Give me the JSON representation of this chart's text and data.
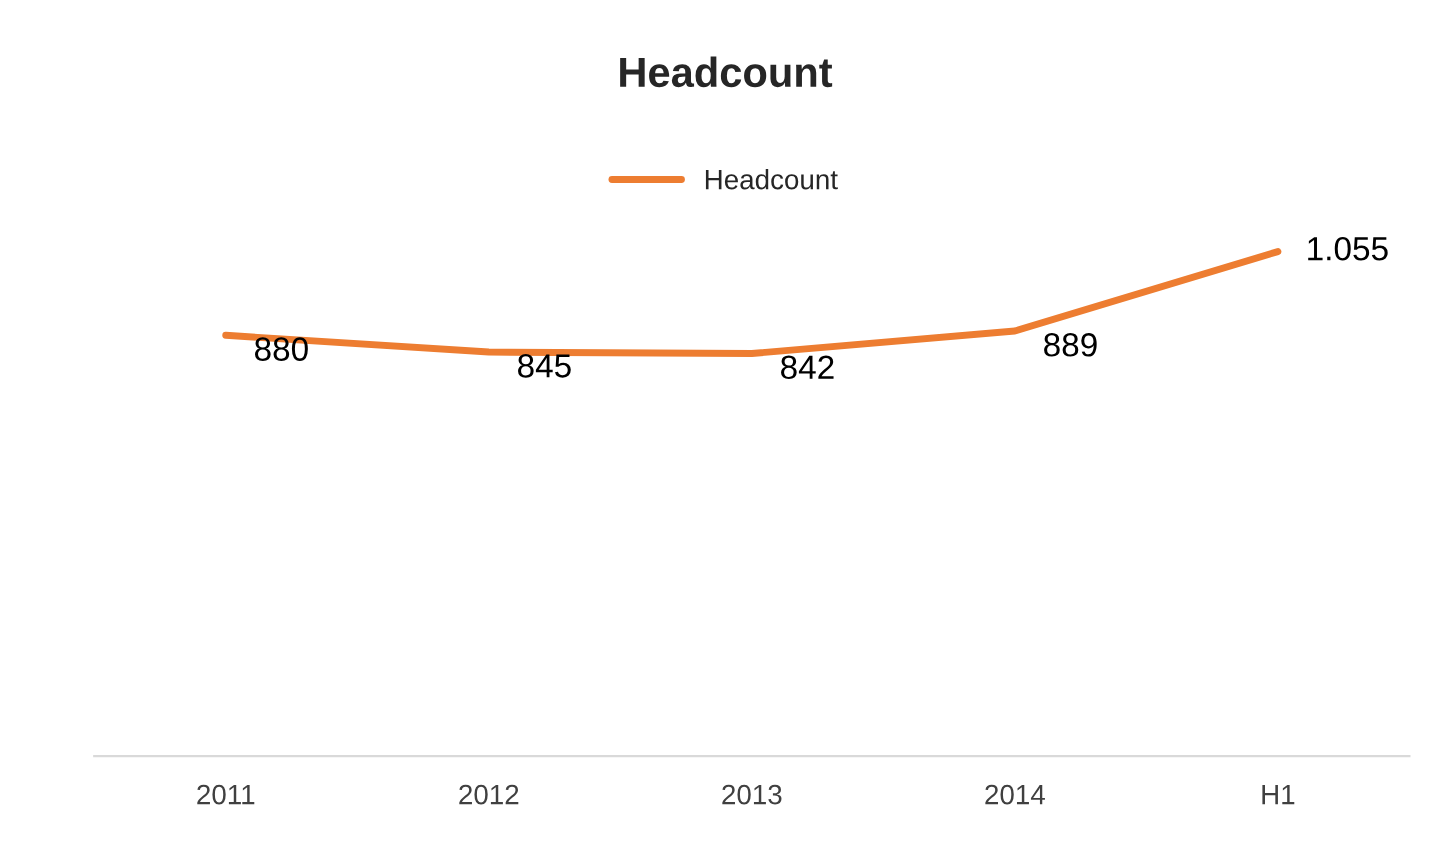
{
  "chart_data": {
    "type": "line",
    "title": "Headcount",
    "categories": [
      "2011",
      "2012",
      "2013",
      "2014",
      "H1"
    ],
    "series": [
      {
        "name": "Headcount",
        "color": "#ed7d31",
        "values": [
          880,
          845,
          842,
          889,
          1055
        ],
        "value_labels": [
          "880",
          "845",
          "842",
          "889",
          "1.055"
        ]
      }
    ],
    "tick_labels": "x",
    "legend": "top",
    "marker": "none",
    "line_style": "solid"
  }
}
